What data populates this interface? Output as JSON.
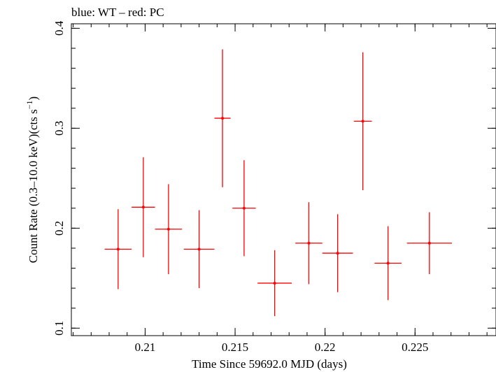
{
  "chart_data": {
    "type": "scatter",
    "title": "blue: WT – red: PC",
    "xlabel": "Time Since 59692.0 MJD (days)",
    "ylabel_main": "Count Rate (0.3–10.0 keV)(cts s",
    "ylabel_sup": "−1",
    "ylabel_end": ")",
    "xlim": [
      0.2059,
      0.2295
    ],
    "ylim": [
      0.0925,
      0.4045
    ],
    "x_ticks": [
      0.21,
      0.215,
      0.22,
      0.225
    ],
    "x_tick_labels": [
      "0.21",
      "0.215",
      "0.22",
      "0.225"
    ],
    "y_ticks": [
      0.1,
      0.2,
      0.3,
      0.4
    ],
    "y_tick_labels": [
      "0.1",
      "0.2",
      "0.3",
      "0.4"
    ],
    "x_minor_step": 0.001,
    "y_minor_step": 0.02,
    "series": [
      {
        "color": "#ff0000",
        "points": [
          {
            "x": 0.2085,
            "xerr": 0.00075,
            "y": 0.179,
            "yerr": 0.04
          },
          {
            "x": 0.2099,
            "xerr": 0.00065,
            "y": 0.221,
            "yerr": 0.05
          },
          {
            "x": 0.2113,
            "xerr": 0.00075,
            "y": 0.199,
            "yerr": 0.045
          },
          {
            "x": 0.213,
            "xerr": 0.00085,
            "y": 0.179,
            "yerr": 0.039
          },
          {
            "x": 0.2143,
            "xerr": 0.00045,
            "y": 0.31,
            "yerr": 0.069
          },
          {
            "x": 0.2155,
            "xerr": 0.00065,
            "y": 0.22,
            "yerr": 0.048
          },
          {
            "x": 0.2172,
            "xerr": 0.00095,
            "y": 0.145,
            "yerr": 0.033
          },
          {
            "x": 0.2191,
            "xerr": 0.00075,
            "y": 0.185,
            "yerr": 0.041
          },
          {
            "x": 0.2207,
            "xerr": 0.00085,
            "y": 0.175,
            "yerr": 0.039
          },
          {
            "x": 0.2221,
            "xerr": 0.0005,
            "y": 0.307,
            "yerr": 0.069
          },
          {
            "x": 0.2235,
            "xerr": 0.00075,
            "y": 0.165,
            "yerr": 0.037
          },
          {
            "x": 0.2258,
            "xerr": 0.00125,
            "y": 0.185,
            "yerr": 0.031
          }
        ]
      }
    ]
  }
}
